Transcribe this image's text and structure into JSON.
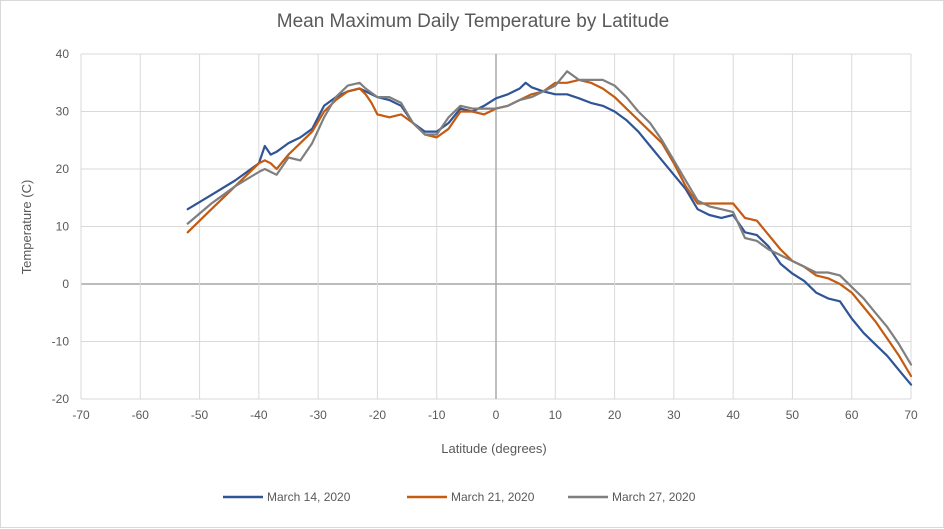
{
  "chart_data": {
    "type": "line",
    "title": "Mean Maximum Daily Temperature by Latitude",
    "xlabel": "Latitude (degrees)",
    "ylabel": "Temperature (C)",
    "xlim": [
      -70,
      70
    ],
    "ylim": [
      -20,
      40
    ],
    "xticks": [
      -70,
      -60,
      -50,
      -40,
      -30,
      -20,
      -10,
      0,
      10,
      20,
      30,
      40,
      50,
      60,
      70
    ],
    "yticks": [
      -20,
      -10,
      0,
      10,
      20,
      30,
      40
    ],
    "grid": true,
    "legend_position": "bottom",
    "series": [
      {
        "name": "March 14, 2020",
        "color": "#2f5597",
        "x": [
          -52,
          -48,
          -44,
          -40,
          -39,
          -38,
          -37,
          -35,
          -33,
          -31,
          -29,
          -27,
          -25,
          -23,
          -22,
          -20,
          -18,
          -16,
          -14,
          -12,
          -10,
          -8,
          -6,
          -4,
          -2,
          0,
          2,
          4,
          5,
          6,
          8,
          10,
          12,
          14,
          16,
          18,
          20,
          22,
          24,
          26,
          28,
          30,
          32,
          34,
          36,
          38,
          40,
          42,
          44,
          46,
          48,
          50,
          52,
          54,
          56,
          58,
          60,
          62,
          64,
          66,
          68,
          70
        ],
        "y": [
          13,
          15.5,
          18,
          21,
          24,
          22.5,
          23,
          24.5,
          25.5,
          27,
          31,
          32.5,
          33.5,
          34,
          33.5,
          32.5,
          32,
          31,
          28,
          26.5,
          26.5,
          28,
          30.5,
          30,
          31,
          32.3,
          33,
          34,
          35,
          34.2,
          33.5,
          33,
          33,
          32.3,
          31.5,
          31,
          30,
          28.5,
          26.5,
          24,
          21.5,
          19,
          16.5,
          13,
          12,
          11.5,
          12,
          9,
          8.5,
          6.5,
          3.5,
          1.8,
          0.5,
          -1.5,
          -2.5,
          -3,
          -6,
          -8.5,
          -10.5,
          -12.5,
          -15,
          -17.5
        ]
      },
      {
        "name": "March 21, 2020",
        "color": "#c55a11",
        "x": [
          -52,
          -48,
          -44,
          -40,
          -39,
          -38,
          -37,
          -35,
          -33,
          -31,
          -29,
          -27,
          -25,
          -23,
          -22,
          -21,
          -20,
          -18,
          -16,
          -14,
          -12,
          -10,
          -8,
          -6,
          -4,
          -2,
          0,
          2,
          4,
          6,
          8,
          10,
          12,
          14,
          16,
          18,
          20,
          22,
          24,
          26,
          28,
          30,
          32,
          34,
          36,
          38,
          40,
          42,
          44,
          46,
          48,
          50,
          52,
          54,
          56,
          58,
          60,
          62,
          64,
          66,
          68,
          70
        ],
        "y": [
          9,
          13,
          17,
          21,
          21.5,
          21,
          20,
          22.5,
          24.5,
          26.5,
          30,
          32,
          33.5,
          34,
          33,
          31.5,
          29.5,
          29,
          29.5,
          28,
          26,
          25.5,
          27,
          30,
          30,
          29.5,
          30.5,
          31,
          32,
          33,
          33.5,
          35,
          35,
          35.5,
          35,
          34,
          32.5,
          30.5,
          28.5,
          26.5,
          24.5,
          21,
          17,
          14,
          14,
          14,
          14,
          11.5,
          11,
          8.5,
          6,
          4,
          3,
          1.5,
          1,
          0,
          -1.5,
          -4,
          -6.5,
          -9.5,
          -12.5,
          -16
        ]
      },
      {
        "name": "March 27, 2020",
        "color": "#7f7f7f",
        "x": [
          -52,
          -48,
          -44,
          -40,
          -39,
          -38,
          -37,
          -35,
          -33,
          -31,
          -29,
          -27,
          -25,
          -23,
          -22,
          -20,
          -18,
          -16,
          -14,
          -12,
          -10,
          -8,
          -6,
          -4,
          -2,
          0,
          2,
          4,
          6,
          8,
          10,
          12,
          14,
          16,
          18,
          20,
          22,
          24,
          26,
          28,
          30,
          32,
          34,
          36,
          38,
          40,
          42,
          44,
          46,
          48,
          50,
          52,
          54,
          56,
          58,
          60,
          62,
          64,
          66,
          68,
          70
        ],
        "y": [
          10.5,
          14,
          17,
          19.5,
          20,
          19.5,
          19,
          22,
          21.5,
          24.5,
          29,
          32.5,
          34.5,
          35,
          34,
          32.5,
          32.5,
          31.5,
          28,
          26,
          26,
          29,
          31,
          30.5,
          30.5,
          30.5,
          31,
          32,
          32.5,
          33.5,
          34.5,
          37,
          35.5,
          35.5,
          35.5,
          34.5,
          32.5,
          30,
          28,
          25,
          21.5,
          18,
          14.5,
          13.5,
          13,
          12.5,
          8,
          7.5,
          6,
          5,
          4,
          3,
          2,
          2,
          1.5,
          -0.5,
          -2.5,
          -5,
          -7.5,
          -10.5,
          -14
        ]
      }
    ]
  }
}
